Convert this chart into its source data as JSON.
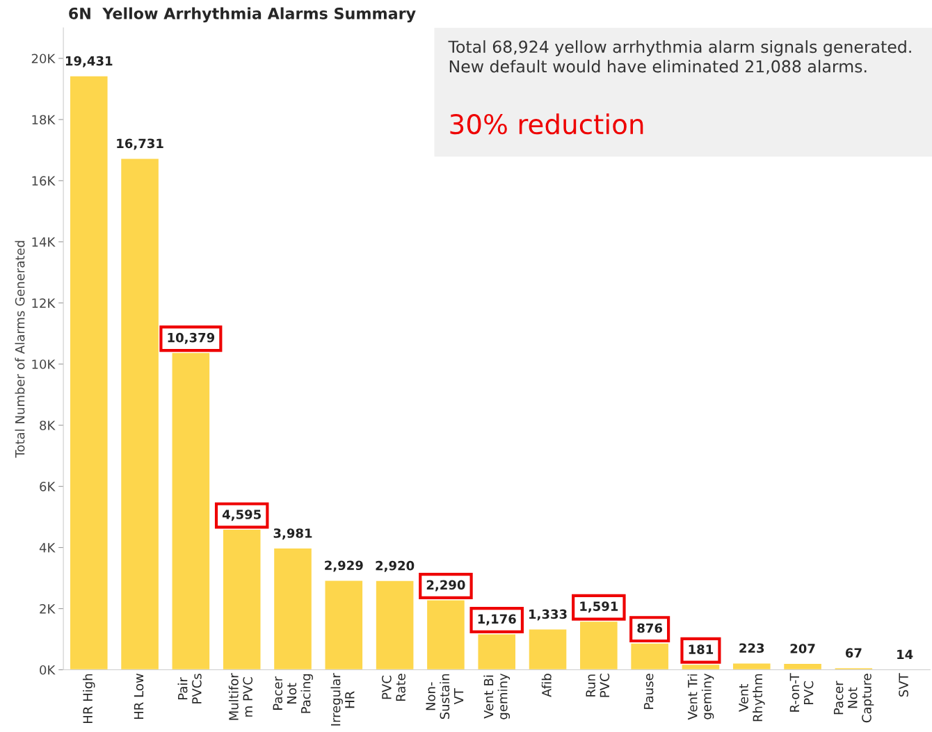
{
  "chart_data": {
    "type": "bar",
    "title": "6N  Yellow Arrhythmia Alarms Summary",
    "ylabel": "Total Number of Alarms Generated",
    "categories": [
      "HR High",
      "HR Low",
      "Pair\nPVCs",
      "Multifor\nm PVC",
      "Pacer\nNot\nPacing",
      "Irregular\nHR",
      "PVC\nRate",
      "Non-\nSustain\nVT",
      "Vent Bi\ngeminy",
      "Afib",
      "Run\nPVC",
      "Pause",
      "Vent Tri\ngeminy",
      "Vent\nRhythm",
      "R-on-T\nPVC",
      "Pacer\nNot\nCapture",
      "SVT"
    ],
    "values": [
      19431,
      16731,
      10379,
      4595,
      3981,
      2929,
      2920,
      2290,
      1176,
      1333,
      1591,
      876,
      181,
      223,
      207,
      67,
      14
    ],
    "value_labels": [
      "19,431",
      "16,731",
      "10,379",
      "4,595",
      "3,981",
      "2,929",
      "2,920",
      "2,290",
      "1,176",
      "1,333",
      "1,591",
      "876",
      "181",
      "223",
      "207",
      "67",
      "14"
    ],
    "color": "#fdd64c",
    "ylim": [
      0,
      21000
    ],
    "yticks": [
      {
        "value": 0,
        "label": "0K"
      },
      {
        "value": 2000,
        "label": "2K"
      },
      {
        "value": 4000,
        "label": "4K"
      },
      {
        "value": 6000,
        "label": "6K"
      },
      {
        "value": 8000,
        "label": "8K"
      },
      {
        "value": 10000,
        "label": "10K"
      },
      {
        "value": 12000,
        "label": "12K"
      },
      {
        "value": 14000,
        "label": "14K"
      },
      {
        "value": 16000,
        "label": "16K"
      },
      {
        "value": 18000,
        "label": "18K"
      },
      {
        "value": 20000,
        "label": "20K"
      }
    ],
    "annotations": [
      "Total 68,924 yellow arrhythmia alarm signals generated.\nNew default would have eliminated 21,088 alarms.",
      "30% reduction"
    ]
  }
}
